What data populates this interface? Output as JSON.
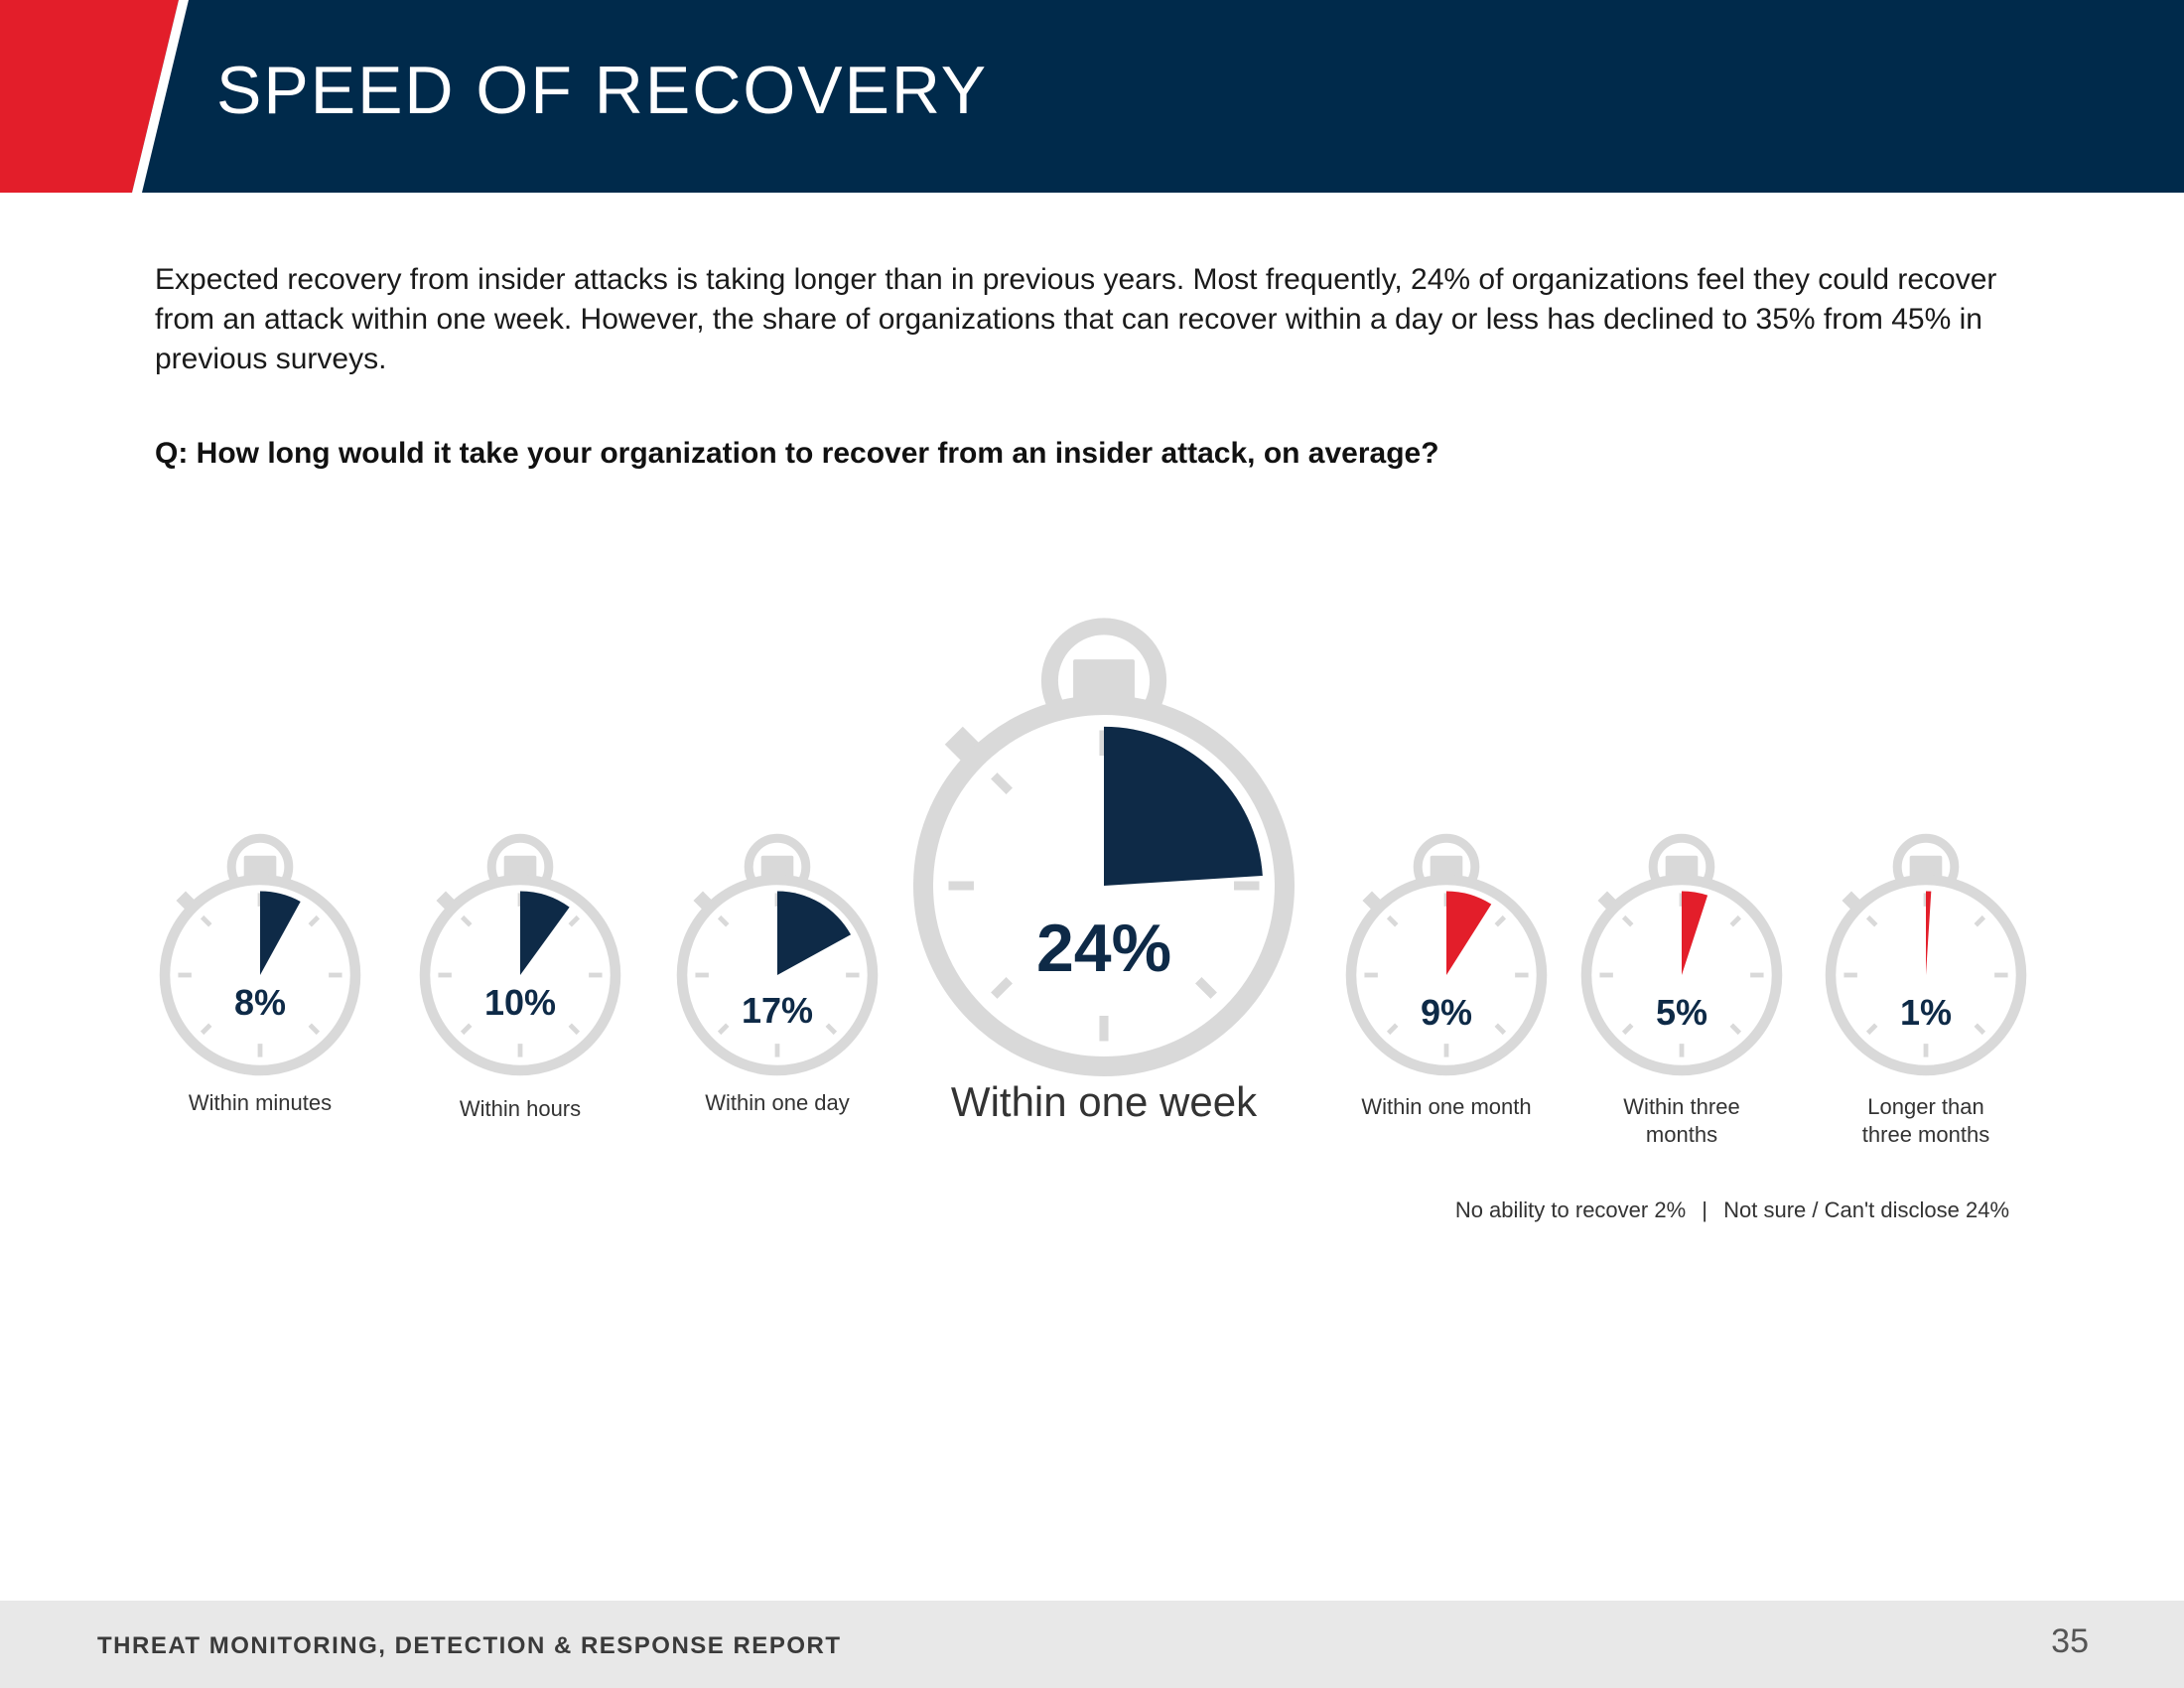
{
  "header": {
    "title": "SPEED OF RECOVERY",
    "colors": {
      "band": "#002a4b",
      "accent": "#e31e2a"
    }
  },
  "intro": {
    "text": "Expected recovery from insider attacks is taking longer than in previous years. Most frequently, 24% of organizations feel they could recover from an attack within one week. However, the share of organizations that can recover within a day or less has declined to 35% from 45% in previous surveys."
  },
  "question": "Q: How long would it take your organization to recover from an insider attack, on average?",
  "chart_data": {
    "type": "pie",
    "title": "How long would it take your organization to recover from an insider attack, on average?",
    "categories": [
      "Within minutes",
      "Within hours",
      "Within one day",
      "Within one week",
      "Within one month",
      "Within three months",
      "Longer than three months"
    ],
    "values": [
      8,
      10,
      17,
      24,
      9,
      5,
      1
    ],
    "labels": [
      "8%",
      "10%",
      "17%",
      "24%",
      "9%",
      "5%",
      "1%"
    ],
    "colors": [
      "#0e2a47",
      "#0e2a47",
      "#0e2a47",
      "#0e2a47",
      "#e31e2a",
      "#e31e2a",
      "#e31e2a"
    ],
    "dial_color": "#d9d9d9",
    "unit": "%"
  },
  "footnote": {
    "no_ability": "No ability to recover 2%",
    "separator": "|",
    "not_sure": "Not sure / Can't disclose 24%"
  },
  "footer": {
    "title": "THREAT MONITORING, DETECTION & RESPONSE REPORT",
    "page_number": "35"
  }
}
